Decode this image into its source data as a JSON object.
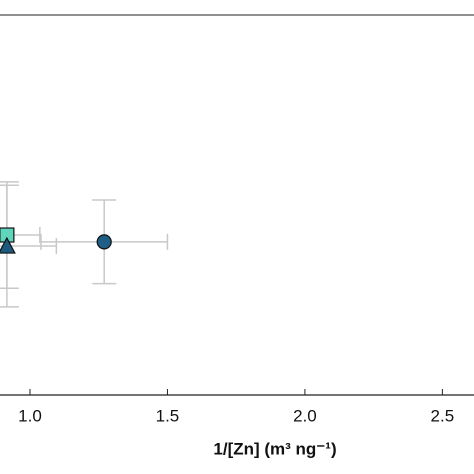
{
  "chart_data": {
    "type": "scatter",
    "x_label": "1/[Zn] (m³ ng⁻¹)",
    "xlim": [
      0.891,
      2.615
    ],
    "ylim": [
      0,
      1
    ],
    "xticks": [
      {
        "value": 1,
        "label": "1.0"
      },
      1.5,
      {
        "value": 2,
        "label": "2.0"
      },
      2.5
    ],
    "error_color": "#c8c8c8",
    "series": [
      {
        "color": "#1f5e86",
        "marker": "circle",
        "x": [
          1.27
        ],
        "values": [
          0.403
        ],
        "xerr": [
          0.23
        ],
        "yerr": [
          0.11
        ]
      },
      {
        "color": "#5fd6bb",
        "marker": "square",
        "x": [
          0.916
        ],
        "values": [
          0.421
        ],
        "xerr": [
          0.12
        ],
        "yerr": [
          0.14
        ]
      },
      {
        "color": "#1d5a80",
        "marker": "triangle",
        "x": [
          0.916
        ],
        "values": [
          0.392
        ],
        "xerr": [
          0.18
        ],
        "yerr": [
          0.16
        ]
      }
    ]
  }
}
